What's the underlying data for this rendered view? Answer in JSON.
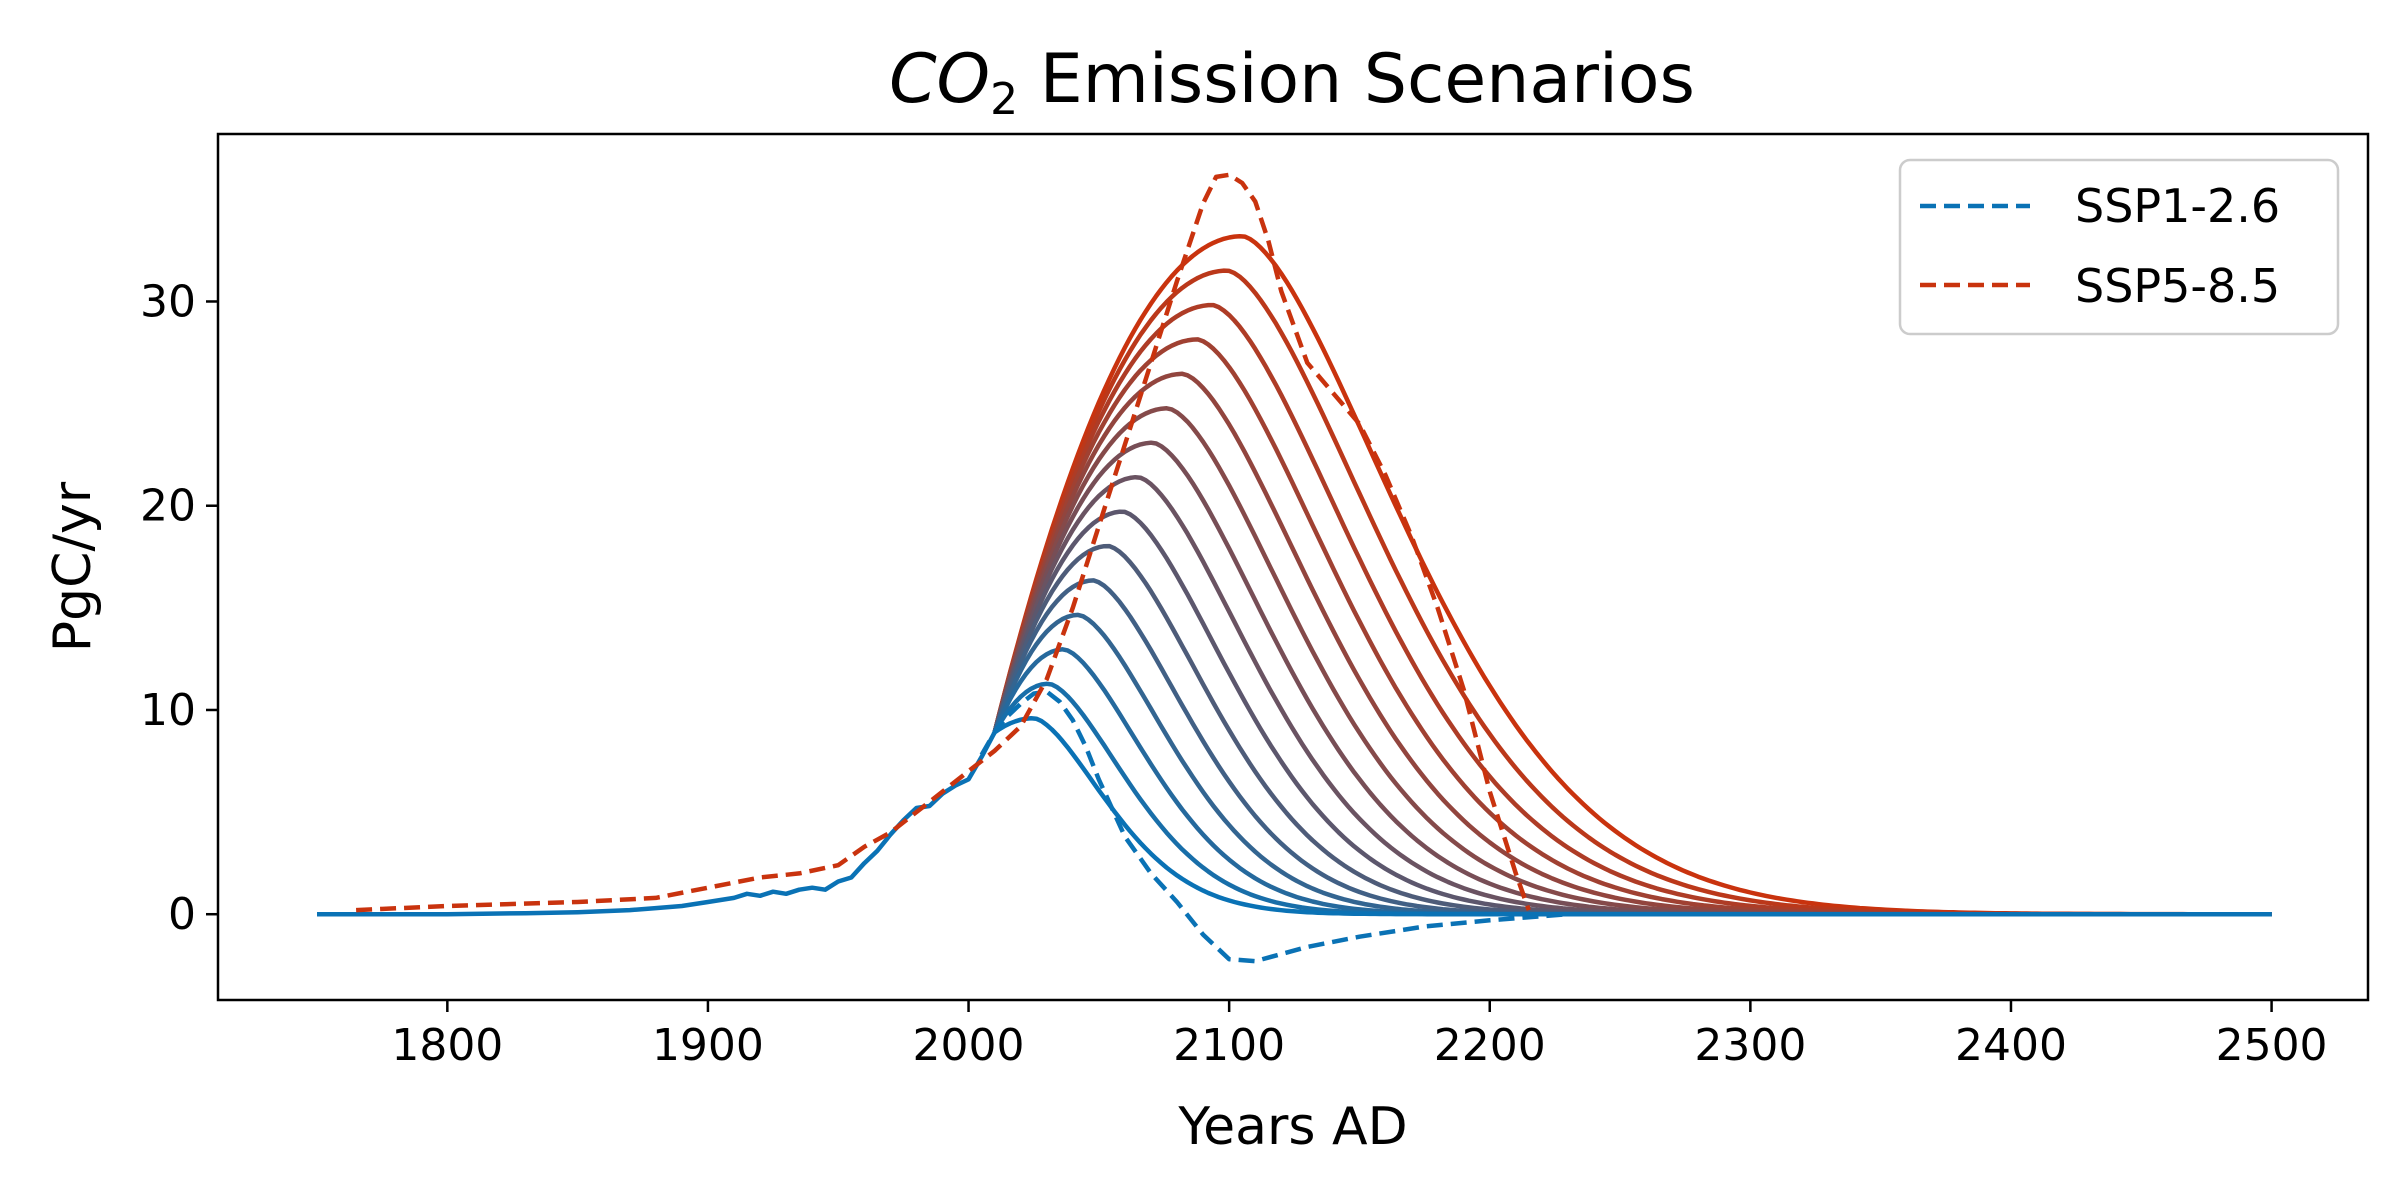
{
  "chart_data": {
    "type": "line",
    "title": {
      "main": "CO",
      "subscript": "2",
      "rest": " Emission Scenarios"
    },
    "xlabel": "Years AD",
    "ylabel": "PgC/yr",
    "xlim": [
      1712,
      2537
    ],
    "ylim": [
      -4.2,
      38.2
    ],
    "xticks": [
      "1800",
      "1900",
      "2000",
      "2100",
      "2200",
      "2300",
      "2400",
      "2500"
    ],
    "yticks": [
      "0",
      "10",
      "20",
      "30"
    ],
    "legend_position": "top-right",
    "colors": {
      "low": "#0a72b5",
      "high": "#c9330e"
    },
    "series": [
      {
        "name": "SSP1-2.6",
        "style": "dashed",
        "color": "#0a72b5",
        "points": [
          [
            2005,
            7.8
          ],
          [
            2010,
            8.9
          ],
          [
            2015,
            9.7
          ],
          [
            2020,
            10.3
          ],
          [
            2025,
            10.8
          ],
          [
            2030,
            10.9
          ],
          [
            2035,
            10.4
          ],
          [
            2040,
            9.5
          ],
          [
            2045,
            8.2
          ],
          [
            2050,
            6.6
          ],
          [
            2060,
            3.8
          ],
          [
            2070,
            2.0
          ],
          [
            2080,
            0.6
          ],
          [
            2090,
            -1.0
          ],
          [
            2100,
            -2.2
          ],
          [
            2110,
            -2.3
          ],
          [
            2130,
            -1.6
          ],
          [
            2150,
            -1.1
          ],
          [
            2175,
            -0.6
          ],
          [
            2200,
            -0.3
          ],
          [
            2230,
            0
          ]
        ]
      },
      {
        "name": "SSP5-8.5",
        "style": "dashed",
        "color": "#c9330e",
        "points": [
          [
            1765,
            0.2
          ],
          [
            1800,
            0.4
          ],
          [
            1850,
            0.6
          ],
          [
            1880,
            0.8
          ],
          [
            1900,
            1.3
          ],
          [
            1920,
            1.8
          ],
          [
            1935,
            2.0
          ],
          [
            1950,
            2.4
          ],
          [
            1960,
            3.3
          ],
          [
            1970,
            4.0
          ],
          [
            1980,
            5.0
          ],
          [
            1990,
            6.0
          ],
          [
            2000,
            7.0
          ],
          [
            2010,
            8.0
          ],
          [
            2020,
            9.2
          ],
          [
            2030,
            11.5
          ],
          [
            2040,
            15.0
          ],
          [
            2050,
            19.0
          ],
          [
            2060,
            23.0
          ],
          [
            2070,
            27.0
          ],
          [
            2080,
            31.0
          ],
          [
            2090,
            34.8
          ],
          [
            2095,
            36.1
          ],
          [
            2100,
            36.2
          ],
          [
            2105,
            35.8
          ],
          [
            2110,
            34.9
          ],
          [
            2115,
            33.0
          ],
          [
            2120,
            30.5
          ],
          [
            2130,
            27.0
          ],
          [
            2140,
            25.5
          ],
          [
            2150,
            24.0
          ],
          [
            2160,
            21.5
          ],
          [
            2170,
            18.5
          ],
          [
            2180,
            15.0
          ],
          [
            2190,
            11.0
          ],
          [
            2200,
            6.0
          ],
          [
            2210,
            2.0
          ],
          [
            2215,
            0.2
          ]
        ]
      }
    ],
    "historical": {
      "color": "#0a72b5",
      "points": [
        [
          1750,
          0
        ],
        [
          1800,
          0
        ],
        [
          1830,
          0.05
        ],
        [
          1850,
          0.1
        ],
        [
          1870,
          0.2
        ],
        [
          1880,
          0.3
        ],
        [
          1890,
          0.4
        ],
        [
          1900,
          0.6
        ],
        [
          1910,
          0.8
        ],
        [
          1915,
          1.0
        ],
        [
          1920,
          0.9
        ],
        [
          1925,
          1.1
        ],
        [
          1930,
          1.0
        ],
        [
          1935,
          1.2
        ],
        [
          1940,
          1.3
        ],
        [
          1945,
          1.2
        ],
        [
          1950,
          1.6
        ],
        [
          1955,
          1.8
        ],
        [
          1960,
          2.5
        ],
        [
          1965,
          3.1
        ],
        [
          1970,
          3.9
        ],
        [
          1975,
          4.6
        ],
        [
          1980,
          5.2
        ],
        [
          1985,
          5.3
        ],
        [
          1990,
          5.9
        ],
        [
          1995,
          6.3
        ],
        [
          2000,
          6.6
        ],
        [
          2005,
          7.7
        ],
        [
          2010,
          8.9
        ]
      ]
    },
    "family": {
      "count": 15,
      "peak_min": 9.6,
      "peak_max": 33.2,
      "peak_year_min": 2025,
      "peak_year_max": 2105,
      "start_year": 2010,
      "start_value": 8.9,
      "end_year": 2500
    }
  }
}
